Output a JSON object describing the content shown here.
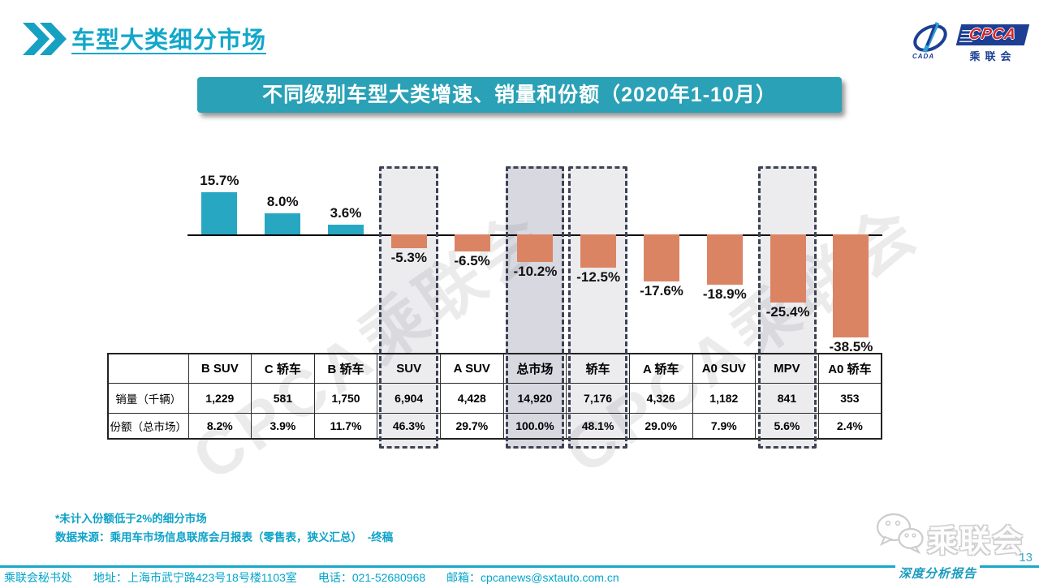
{
  "header": {
    "title": "车型大类细分市场"
  },
  "logo": {
    "cpca": "CPCA",
    "cada": "CADA",
    "name_cn": "乘联会"
  },
  "banner": {
    "title": "不同级别车型大类增速、销量和份额（2020年1-10月）"
  },
  "watermark": {
    "text": "CPCA乘联会"
  },
  "chart_data": {
    "type": "bar",
    "title": "不同级别车型大类增速、销量和份额（2020年1-10月）",
    "categories": [
      "B SUV",
      "C 轿车",
      "B 轿车",
      "SUV",
      "A SUV",
      "总市场",
      "轿车",
      "A 轿车",
      "A0 SUV",
      "MPV",
      "A0 轿车"
    ],
    "series": [
      {
        "name": "增速",
        "unit": "%",
        "values": [
          15.7,
          8.0,
          3.6,
          -5.3,
          -6.5,
          -10.2,
          -12.5,
          -17.6,
          -18.9,
          -25.4,
          -38.5
        ]
      }
    ],
    "bar_labels": [
      "15.7%",
      "8.0%",
      "3.6%",
      "-5.3%",
      "-6.5%",
      "-10.2%",
      "-12.5%",
      "-17.6%",
      "-18.9%",
      "-25.4%",
      "-38.5%"
    ],
    "highlighted_indices": [
      3,
      5,
      6,
      9
    ],
    "darker_highlight_index": 5,
    "ylim": [
      -40,
      18
    ],
    "grid": false,
    "legend": "none",
    "colors": {
      "positive": "#28A7C3",
      "negative": "#DB8463",
      "highlight_fill": "#ECECEF",
      "highlight_fill_dark": "#D8D8E1",
      "highlight_border": "#3D4254"
    },
    "table": {
      "row_labels": [
        "销量（千辆）",
        "份额（总市场）"
      ],
      "sales": [
        "1,229",
        "581",
        "1,750",
        "6,904",
        "4,428",
        "14,920",
        "7,176",
        "4,326",
        "1,182",
        "841",
        "353"
      ],
      "share": [
        "8.2%",
        "3.9%",
        "11.7%",
        "46.3%",
        "29.7%",
        "100.0%",
        "48.1%",
        "29.0%",
        "7.9%",
        "5.6%",
        "2.4%"
      ]
    }
  },
  "notes": {
    "note1": "*未计入份额低于2%的细分市场",
    "note2": "数据来源：乘用车市场信息联席会月报表（零售表，狭义汇总）　-终稿"
  },
  "footer": {
    "secretariat": "乘联会秘书处",
    "address": "地址：上海市武宁路423号18号楼1103室",
    "phone": "电话：021-52680968",
    "email": "邮箱：cpcanews@sxtauto.com.cn"
  },
  "bottom_right": {
    "wechat_name": "乘联会",
    "report_label": "深度分析报告",
    "page_number": "13"
  }
}
